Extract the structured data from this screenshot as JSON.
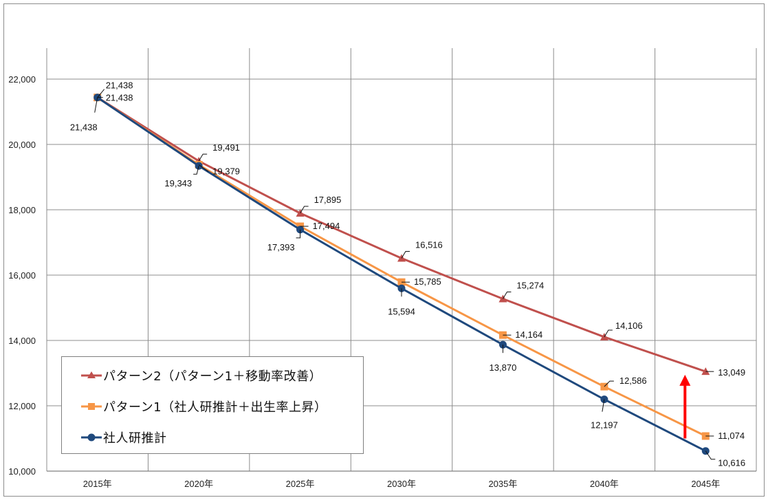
{
  "chart_data": {
    "type": "line",
    "categories": [
      "2015年",
      "2020年",
      "2025年",
      "2030年",
      "2035年",
      "2040年",
      "2045年"
    ],
    "ylim": [
      10000,
      22000
    ],
    "yticks": [
      "10,000",
      "12,000",
      "14,000",
      "16,000",
      "18,000",
      "20,000",
      "22,000"
    ],
    "grid": true,
    "legend_position": "bottom-left",
    "series": [
      {
        "name": "パターン2（パターン1＋移動率改善）",
        "marker": "triangle",
        "color": "#c0504d",
        "values": [
          21438,
          19491,
          17895,
          16516,
          15274,
          14106,
          13049
        ],
        "labels": [
          "21,438",
          "19,491",
          "17,895",
          "16,516",
          "15,274",
          "14,106",
          "13,049"
        ]
      },
      {
        "name": "パターン1（社人研推計＋出生率上昇）",
        "marker": "square",
        "color": "#f79646",
        "values": [
          21438,
          19379,
          17494,
          15785,
          14164,
          12586,
          11074
        ],
        "labels": [
          "21,438",
          "19,379",
          "17,494",
          "15,785",
          "14,164",
          "12,586",
          "11,074"
        ]
      },
      {
        "name": "社人研推計",
        "marker": "circle",
        "color": "#1f497d",
        "values": [
          21438,
          19343,
          17393,
          15594,
          13870,
          12197,
          10616
        ],
        "labels": [
          "21,438",
          "19,343",
          "17,393",
          "15,594",
          "13,870",
          "12,197",
          "10,616"
        ]
      }
    ],
    "annotation": {
      "type": "arrow",
      "color": "#ff0000",
      "category": "2045年",
      "from_value": 11000,
      "to_value": 12950
    }
  }
}
